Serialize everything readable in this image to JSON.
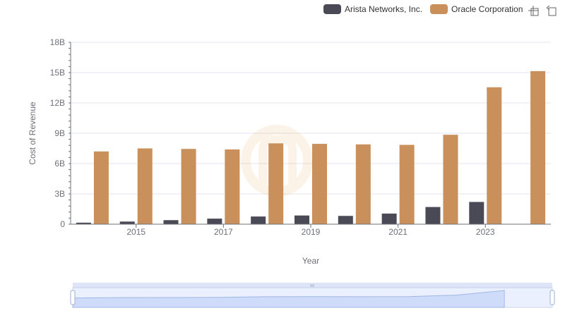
{
  "toolbox": {
    "zoom_icon": "zoom-select-icon",
    "reset_icon": "zoom-reset-icon"
  },
  "chart_data": {
    "type": "bar",
    "xlabel": "Year",
    "ylabel": "Cost of Revenue",
    "categories": [
      "2014",
      "2015",
      "2016",
      "2017",
      "2018",
      "2019",
      "2020",
      "2021",
      "2022",
      "2023",
      "2024"
    ],
    "x_tick_labels": [
      "2015",
      "2017",
      "2019",
      "2021",
      "2023"
    ],
    "ylim": [
      0,
      18000000000
    ],
    "y_ticks": [
      {
        "value": 0,
        "label": "0"
      },
      {
        "value": 3000000000,
        "label": "3B"
      },
      {
        "value": 6000000000,
        "label": "6B"
      },
      {
        "value": 9000000000,
        "label": "9B"
      },
      {
        "value": 12000000000,
        "label": "12B"
      },
      {
        "value": 15000000000,
        "label": "15B"
      },
      {
        "value": 18000000000,
        "label": "18B"
      }
    ],
    "grid": true,
    "legend_position": "top-right",
    "series": [
      {
        "name": "Arista Networks, Inc.",
        "color": "#4a4a56",
        "values": [
          150000000,
          260000000,
          400000000,
          550000000,
          760000000,
          860000000,
          820000000,
          1050000000,
          1700000000,
          2200000000,
          null
        ]
      },
      {
        "name": "Oracle Corporation",
        "color": "#c9905c",
        "values": [
          7200000000,
          7500000000,
          7450000000,
          7400000000,
          8000000000,
          7950000000,
          7900000000,
          7850000000,
          8850000000,
          13550000000,
          15150000000
        ]
      }
    ],
    "data_zoom": {
      "range": [
        0,
        100
      ]
    }
  }
}
